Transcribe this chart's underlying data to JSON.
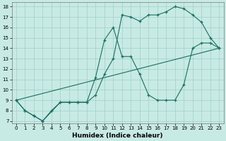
{
  "xlabel": "Humidex (Indice chaleur)",
  "bg_color": "#c8eae4",
  "grid_color": "#9ecfca",
  "line_color": "#1a6e62",
  "xlim": [
    -0.5,
    23.5
  ],
  "ylim": [
    6.8,
    18.4
  ],
  "xticks": [
    0,
    1,
    2,
    3,
    4,
    5,
    6,
    7,
    8,
    9,
    10,
    11,
    12,
    13,
    14,
    15,
    16,
    17,
    18,
    19,
    20,
    21,
    22,
    23
  ],
  "yticks": [
    7,
    8,
    9,
    10,
    11,
    12,
    13,
    14,
    15,
    16,
    17,
    18
  ],
  "line1_x": [
    0,
    1,
    2,
    3,
    4,
    5,
    6,
    7,
    8,
    9,
    10,
    11,
    12,
    13,
    14,
    15,
    16,
    17,
    18,
    19,
    20,
    21,
    22,
    23
  ],
  "line1_y": [
    9,
    8,
    7.5,
    7,
    8,
    8.8,
    8.8,
    8.8,
    8.8,
    9.5,
    11.5,
    13,
    17.2,
    17,
    16.6,
    17.2,
    17.2,
    17.5,
    18,
    17.8,
    17.2,
    16.5,
    15,
    14
  ],
  "line2_x": [
    0,
    1,
    2,
    3,
    5,
    6,
    7,
    8,
    9,
    10,
    11,
    12,
    13,
    14,
    15,
    16,
    17,
    18,
    19,
    20,
    21,
    22,
    23
  ],
  "line2_y": [
    9,
    8,
    7.5,
    7,
    8.8,
    8.8,
    8.8,
    8.8,
    11.2,
    14.8,
    16.0,
    13.2,
    13.2,
    11.5,
    9.5,
    9.0,
    9.0,
    9.0,
    10.5,
    14.0,
    14.5,
    14.5,
    14
  ],
  "line3_x": [
    0,
    23
  ],
  "line3_y": [
    9,
    14
  ],
  "xlabel_fontsize": 6.5,
  "tick_fontsize": 5
}
